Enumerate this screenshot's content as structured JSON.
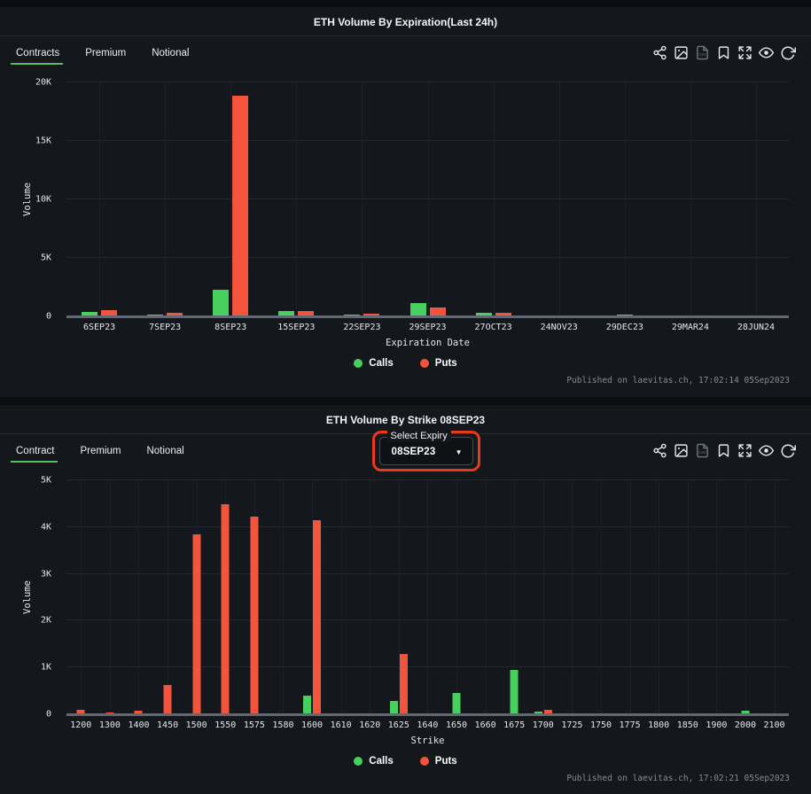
{
  "colors": {
    "calls": "#48d05f",
    "puts": "#f4533c",
    "tab_active_underline": "#5abe60",
    "annotation": "#e8391d",
    "panel_bg": "#14181d",
    "page_bg": "#0a0d10"
  },
  "toolbar_icons": [
    {
      "name": "share-icon"
    },
    {
      "name": "image-export-icon"
    },
    {
      "name": "csv-export-icon",
      "dim": true
    },
    {
      "name": "bookmark-icon"
    },
    {
      "name": "fullscreen-icon"
    },
    {
      "name": "visibility-icon"
    },
    {
      "name": "refresh-icon",
      "big": true
    }
  ],
  "panels": [
    {
      "title": "ETH Volume By Expiration(Last 24h)",
      "tabs": [
        {
          "label": "Contracts",
          "active": true
        },
        {
          "label": "Premium",
          "active": false
        },
        {
          "label": "Notional",
          "active": false
        }
      ],
      "published": "Published on laevitas.ch, 17:02:14 05Sep2023"
    },
    {
      "title": "ETH Volume By Strike 08SEP23",
      "tabs": [
        {
          "label": "Contract",
          "active": true
        },
        {
          "label": "Premium",
          "active": false
        },
        {
          "label": "Notional",
          "active": false
        }
      ],
      "select_expiry": {
        "label": "Select Expiry",
        "value": "08SEP23"
      },
      "published": "Published on laevitas.ch, 17:02:21 05Sep2023"
    }
  ],
  "chart_data": [
    {
      "type": "bar",
      "title": "ETH Volume By Expiration(Last 24h)",
      "xlabel": "Expiration Date",
      "ylabel": "Volume",
      "ylim": [
        0,
        20000
      ],
      "yticks": [
        {
          "value": 0,
          "label": "0"
        },
        {
          "value": 5000,
          "label": "5K"
        },
        {
          "value": 10000,
          "label": "10K"
        },
        {
          "value": 15000,
          "label": "15K"
        },
        {
          "value": 20000,
          "label": "20K"
        }
      ],
      "grid": true,
      "legend_position": "bottom",
      "categories": [
        "6SEP23",
        "7SEP23",
        "8SEP23",
        "15SEP23",
        "22SEP23",
        "29SEP23",
        "27OCT23",
        "24NOV23",
        "29DEC23",
        "29MAR24",
        "28JUN24"
      ],
      "series": [
        {
          "name": "Calls",
          "color_key": "calls",
          "values": [
            380,
            160,
            2300,
            450,
            160,
            1150,
            320,
            60,
            180,
            0,
            0
          ]
        },
        {
          "name": "Puts",
          "color_key": "puts",
          "values": [
            530,
            300,
            18900,
            430,
            210,
            780,
            300,
            40,
            0,
            0,
            0
          ]
        }
      ]
    },
    {
      "type": "bar",
      "title": "ETH Volume By Strike 08SEP23",
      "xlabel": "Strike",
      "ylabel": "Volume",
      "ylim": [
        0,
        5000
      ],
      "yticks": [
        {
          "value": 0,
          "label": "0"
        },
        {
          "value": 1000,
          "label": "1K"
        },
        {
          "value": 2000,
          "label": "2K"
        },
        {
          "value": 3000,
          "label": "3K"
        },
        {
          "value": 4000,
          "label": "4K"
        },
        {
          "value": 5000,
          "label": "5K"
        }
      ],
      "grid": true,
      "legend_position": "bottom",
      "categories": [
        "1200",
        "1300",
        "1400",
        "1450",
        "1500",
        "1550",
        "1575",
        "1580",
        "1600",
        "1610",
        "1620",
        "1625",
        "1640",
        "1650",
        "1660",
        "1675",
        "1700",
        "1725",
        "1750",
        "1775",
        "1800",
        "1850",
        "1900",
        "2000",
        "2100"
      ],
      "series": [
        {
          "name": "Calls",
          "color_key": "calls",
          "values": [
            0,
            0,
            0,
            0,
            0,
            0,
            0,
            0,
            400,
            0,
            0,
            280,
            0,
            450,
            0,
            950,
            60,
            0,
            0,
            0,
            0,
            0,
            0,
            70,
            0
          ]
        },
        {
          "name": "Puts",
          "color_key": "puts",
          "values": [
            90,
            45,
            85,
            620,
            3850,
            4480,
            4230,
            0,
            4150,
            0,
            0,
            1290,
            0,
            0,
            0,
            0,
            100,
            0,
            0,
            0,
            0,
            0,
            0,
            0,
            0
          ]
        }
      ]
    }
  ]
}
